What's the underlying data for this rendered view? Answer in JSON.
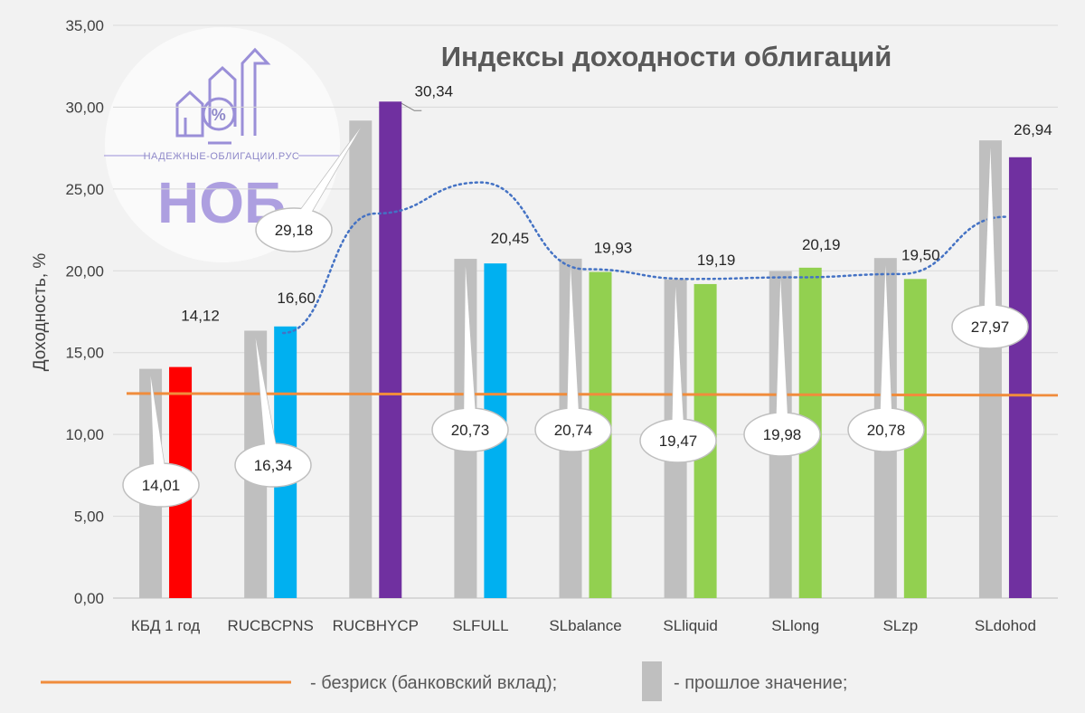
{
  "chart_data": {
    "type": "bar",
    "title": "Индексы доходности облигаций",
    "ylabel": "Доходность, %",
    "xlabel": "",
    "ylim": [
      0,
      35
    ],
    "ytick_step": 5,
    "ytick_labels": [
      "0,00",
      "5,00",
      "10,00",
      "15,00",
      "20,00",
      "25,00",
      "30,00",
      "35,00"
    ],
    "grid": true,
    "categories": [
      "КБД 1 год",
      "RUCBCPNS",
      "RUCBHYCP",
      "SLFULL",
      "SLbalance",
      "SLliquid",
      "SLlong",
      "SLzp",
      "SLdohod"
    ],
    "series": [
      {
        "name": "- прошлое значение;",
        "color": "#bfbfbf",
        "values": [
          14.01,
          16.34,
          29.18,
          20.73,
          20.74,
          19.47,
          19.98,
          20.78,
          27.97
        ],
        "labels": [
          "14,01",
          "16,34",
          "29,18",
          "20,73",
          "20,74",
          "19,47",
          "19,98",
          "20,78",
          "27,97"
        ]
      },
      {
        "name": "",
        "colors": [
          "#ff0000",
          "#00b0f0",
          "#7030a0",
          "#00b0f0",
          "#92d050",
          "#92d050",
          "#92d050",
          "#92d050",
          "#7030a0"
        ],
        "values": [
          14.12,
          16.6,
          30.34,
          20.45,
          19.93,
          19.19,
          20.19,
          19.5,
          26.94
        ],
        "labels": [
          "14,12",
          "16,60",
          "30,34",
          "20,45",
          "19,93",
          "19,19",
          "20,19",
          "19,50",
          "26,94"
        ]
      }
    ],
    "risk_free": {
      "name": "- безриск (банковский вклад);",
      "color": "#f08c3c",
      "start": 12.5,
      "end": 12.4
    },
    "trend_line": {
      "color": "#4472c4",
      "values": [
        null,
        16.2,
        23.5,
        25.4,
        20.1,
        19.5,
        19.6,
        19.8,
        23.3
      ]
    }
  },
  "watermark": {
    "site": "НАДЕЖНЫЕ-ОБЛИГАЦИИ.РУС",
    "brand": "НОБ",
    "percent_symbol": "%"
  },
  "legend": {
    "risk_free_label": "- безриск (банковский вклад);",
    "prev_label": "- прошлое значение;"
  },
  "colors": {
    "background": "#f2f2f2",
    "gridline": "#d9d9d9",
    "axis": "#bfbfbf"
  }
}
